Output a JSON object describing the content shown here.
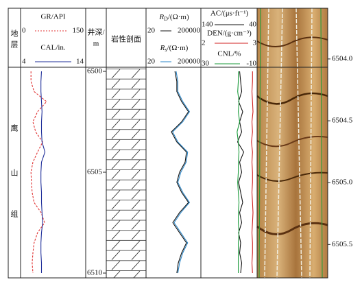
{
  "formation": {
    "header": [
      "地",
      "层"
    ],
    "name": [
      "鹰",
      "山",
      "组"
    ]
  },
  "depth": {
    "header": [
      "井深/",
      "m"
    ],
    "ylim": [
      6500,
      6510
    ],
    "ticks": [
      6500,
      6505,
      6510
    ]
  },
  "lithology": {
    "header": "岩性剖面"
  },
  "depths": [
    6500,
    6500.5,
    6501,
    6501.5,
    6502,
    6502.5,
    6503,
    6503.5,
    6504,
    6504.5,
    6505,
    6505.5,
    6506,
    6506.5,
    6507,
    6507.5,
    6508,
    6508.5,
    6509,
    6509.5,
    6510
  ],
  "tracks": [
    {
      "curves": [
        {
          "name": "GR/API",
          "color": "#e03030",
          "dash": true,
          "xlim": [
            0,
            150
          ],
          "values": [
            18,
            18,
            26,
            58,
            35,
            23,
            30,
            48,
            35,
            23,
            18,
            19,
            21,
            26,
            44,
            53,
            35,
            26,
            23,
            21,
            23
          ]
        },
        {
          "name": "CAL/in.",
          "color": "#1c2c98",
          "xlim": [
            4,
            14
          ],
          "values": [
            7.0,
            6.9,
            6.9,
            7.0,
            7.1,
            7.0,
            7.0,
            7.1,
            7.6,
            7.0,
            6.9,
            6.9,
            7.0,
            7.0,
            7.1,
            7.2,
            7.0,
            6.9,
            6.9,
            7.0,
            7.0
          ]
        }
      ]
    },
    {
      "curves": [
        {
          "symbol": "R",
          "sub": "D",
          "unit": "/(Ω·m)",
          "color": "#111111",
          "log": true,
          "xlim": [
            20,
            200000
          ],
          "values": [
            2300,
            3300,
            3300,
            8100,
            29000,
            8100,
            1200,
            3300,
            20000,
            15500,
            5500,
            3300,
            8100,
            29000,
            5500,
            1550,
            5500,
            20000,
            8100,
            4300,
            3300
          ]
        },
        {
          "symbol": "R",
          "sub": "s",
          "unit": "/(Ω·m)",
          "color": "#2a86c8",
          "log": true,
          "xlim": [
            20,
            200000
          ],
          "values": [
            2900,
            4000,
            4000,
            10000,
            35000,
            10000,
            1500,
            4000,
            25000,
            19000,
            7000,
            4000,
            10000,
            35000,
            7000,
            2000,
            7000,
            25000,
            10000,
            5500,
            4000
          ]
        }
      ]
    },
    {
      "curves": [
        {
          "name": "AC/(μs·ft⁻¹)",
          "color": "#d02020",
          "line": "#111111",
          "xlim": [
            140,
            40
          ],
          "values": [
            70,
            68,
            66,
            72,
            64,
            70,
            66,
            74,
            62,
            70,
            66,
            72,
            68,
            64,
            70,
            66,
            72,
            68,
            70,
            66,
            68
          ]
        },
        {
          "name": "DEN/(g·cm⁻³)",
          "color": "#111111",
          "line": "#d02020",
          "xlim": [
            2,
            3
          ],
          "values": [
            2.95,
            2.95,
            2.94,
            2.95,
            2.96,
            2.94,
            2.95,
            2.93,
            2.95,
            2.94,
            2.95,
            2.95,
            2.94,
            2.95,
            2.96,
            2.95,
            2.94,
            2.95,
            2.95,
            2.94,
            2.95
          ]
        },
        {
          "name": "CNL/%",
          "color": "#1a9a3a",
          "xlim": [
            30,
            -10
          ],
          "values": [
            3,
            3,
            3.5,
            2.5,
            3,
            2,
            4,
            3,
            2.5,
            3,
            3,
            3.5,
            3,
            2.5,
            3,
            3,
            2.5,
            3,
            3,
            3,
            3
          ]
        }
      ]
    }
  ],
  "image": {
    "ylim": [
      6503.59,
      6505.77
    ],
    "ticks": [
      {
        "value": 6504,
        "label": "6504.0"
      },
      6504.5,
      {
        "value": 6505,
        "label": "6505.0"
      },
      6505.5
    ]
  }
}
